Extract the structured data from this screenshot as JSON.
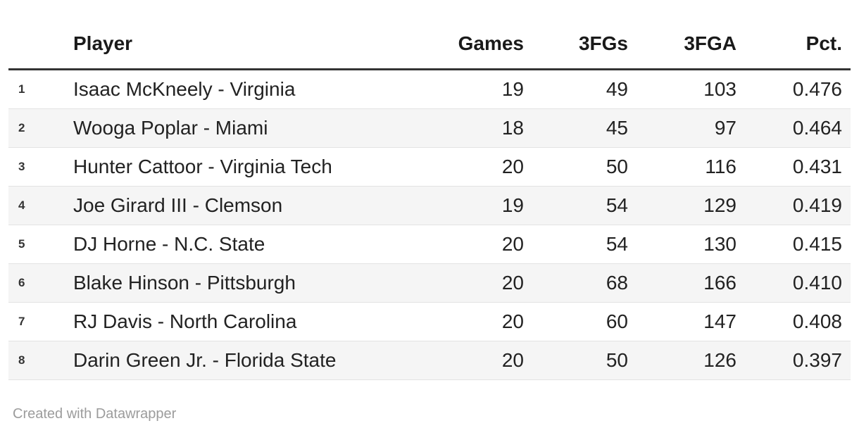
{
  "header": {
    "rank_label": "",
    "columns": [
      "Player",
      "Games",
      "3FGs",
      "3FGA",
      "Pct."
    ]
  },
  "rows": [
    {
      "rank": "1",
      "player": "Isaac McKneely - Virginia",
      "games": "19",
      "fg3": "49",
      "fga3": "103",
      "pct": "0.476"
    },
    {
      "rank": "2",
      "player": "Wooga Poplar - Miami",
      "games": "18",
      "fg3": "45",
      "fga3": "97",
      "pct": "0.464"
    },
    {
      "rank": "3",
      "player": "Hunter Cattoor - Virginia Tech",
      "games": "20",
      "fg3": "50",
      "fga3": "116",
      "pct": "0.431"
    },
    {
      "rank": "4",
      "player": "Joe Girard III - Clemson",
      "games": "19",
      "fg3": "54",
      "fga3": "129",
      "pct": "0.419"
    },
    {
      "rank": "5",
      "player": "DJ Horne - N.C. State",
      "games": "20",
      "fg3": "54",
      "fga3": "130",
      "pct": "0.415"
    },
    {
      "rank": "6",
      "player": "Blake Hinson - Pittsburgh",
      "games": "20",
      "fg3": "68",
      "fga3": "166",
      "pct": "0.410"
    },
    {
      "rank": "7",
      "player": "RJ Davis - North Carolina",
      "games": "20",
      "fg3": "60",
      "fga3": "147",
      "pct": "0.408"
    },
    {
      "rank": "8",
      "player": "Darin Green Jr. - Florida State",
      "games": "20",
      "fg3": "50",
      "fga3": "126",
      "pct": "0.397"
    }
  ],
  "footer": {
    "attribution": "Created with Datawrapper"
  },
  "colors": {
    "header_text": "#1a1a1a",
    "body_text": "#222222",
    "header_rule": "#333333",
    "row_separator": "#e3e3e3",
    "zebra_row_bg": "#f5f5f5",
    "attribution_text": "#9c9c9c",
    "background": "#ffffff"
  },
  "chart_data": {
    "type": "table",
    "title": "",
    "columns": [
      "Player",
      "Games",
      "3FGs",
      "3FGA",
      "Pct."
    ],
    "row_numbers": [
      1,
      2,
      3,
      4,
      5,
      6,
      7,
      8
    ],
    "rows": [
      [
        "Isaac McKneely - Virginia",
        19,
        49,
        103,
        0.476
      ],
      [
        "Wooga Poplar - Miami",
        18,
        45,
        97,
        0.464
      ],
      [
        "Hunter Cattoor - Virginia Tech",
        20,
        50,
        116,
        0.431
      ],
      [
        "Joe Girard III - Clemson",
        19,
        54,
        129,
        0.419
      ],
      [
        "DJ Horne - N.C. State",
        20,
        54,
        130,
        0.415
      ],
      [
        "Blake Hinson - Pittsburgh",
        20,
        68,
        166,
        0.41
      ],
      [
        "RJ Davis - North Carolina",
        20,
        60,
        147,
        0.408
      ],
      [
        "Darin Green Jr. - Florida State",
        20,
        50,
        126,
        0.397
      ]
    ],
    "layout_hints": {
      "zebra_striping": true,
      "row_numbers_shown": true,
      "numeric_columns_right_aligned": true
    }
  }
}
